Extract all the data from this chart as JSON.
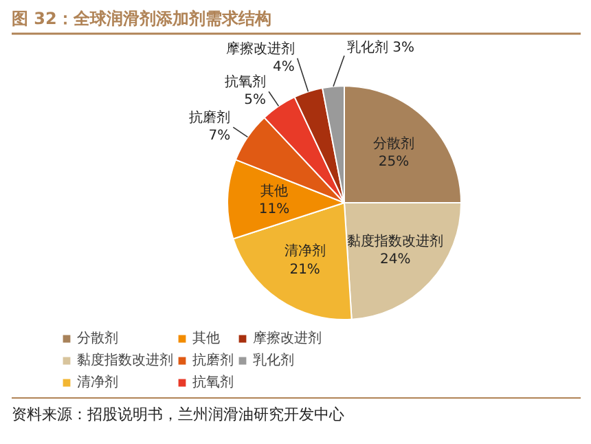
{
  "chart_data": {
    "type": "pie",
    "title": "图 32：全球润滑剂添加剂需求结构",
    "categories": [
      "分散剂",
      "黏度指数改进剂",
      "清净剂",
      "其他",
      "抗磨剂",
      "抗氧剂",
      "摩擦改进剂",
      "乳化剂"
    ],
    "values": [
      25,
      24,
      21,
      11,
      7,
      5,
      4,
      3
    ],
    "colors": [
      "#a8825a",
      "#d8c49c",
      "#f2b632",
      "#f28c00",
      "#e05a14",
      "#e83a28",
      "#a8300e",
      "#9a9a9a"
    ],
    "value_labels": [
      "25%",
      "24%",
      "21%",
      "11%",
      "7%",
      "5%",
      "4%",
      "3%"
    ],
    "legend": "bottom",
    "annotations": [
      "资料来源：招股说明书，兰州润滑油研究开发中心"
    ]
  }
}
